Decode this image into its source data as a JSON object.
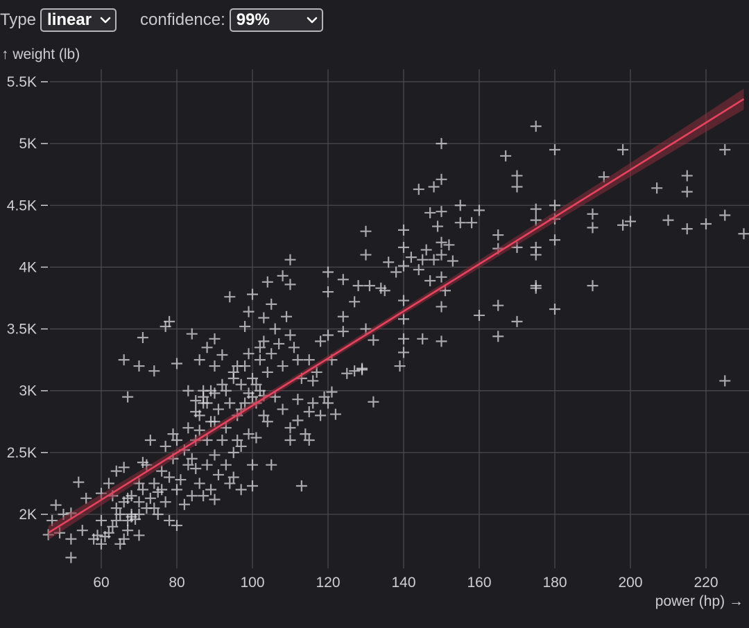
{
  "controls": {
    "type_label": "Type",
    "type_value": "linear",
    "confidence_label": "confidence:",
    "confidence_value": "99%"
  },
  "colors": {
    "background": "#1e1d21",
    "grid": "#4a494e",
    "points": "#d9d9dd",
    "regression": "#e8435e",
    "band": "#8b2b3d"
  },
  "chart_data": {
    "type": "scatter",
    "title": "",
    "xlabel": "power (hp) →",
    "ylabel": "↑ weight (lb)",
    "xlim": [
      45,
      230
    ],
    "ylim": [
      1600,
      5600
    ],
    "x_ticks": [
      60,
      80,
      100,
      120,
      140,
      160,
      180,
      200,
      220
    ],
    "y_ticks": [
      2000,
      2500,
      3000,
      3500,
      4000,
      4500,
      5000,
      5500
    ],
    "y_tick_labels": [
      "2K",
      "2.5K",
      "3K",
      "3.5K",
      "4K",
      "4.5K",
      "5K",
      "5.5K"
    ],
    "grid": true,
    "marker": "plus",
    "regression": {
      "type": "linear",
      "confidence": 0.99,
      "x0": 46,
      "y0": 1850,
      "x1": 230,
      "y1": 5360,
      "band_halfwidth_ends": 85,
      "band_halfwidth_mid": 25
    },
    "points": [
      [
        46,
        1835
      ],
      [
        47,
        1950
      ],
      [
        48,
        2075
      ],
      [
        49,
        1850
      ],
      [
        50,
        2000
      ],
      [
        52,
        2010
      ],
      [
        52,
        1800
      ],
      [
        52,
        1650
      ],
      [
        54,
        2260
      ],
      [
        55,
        1870
      ],
      [
        56,
        2130
      ],
      [
        58,
        1800
      ],
      [
        59,
        1830
      ],
      [
        60,
        1760
      ],
      [
        60,
        1950
      ],
      [
        60,
        2170
      ],
      [
        61,
        1820
      ],
      [
        62,
        1850
      ],
      [
        63,
        1900
      ],
      [
        64,
        2050
      ],
      [
        64,
        1950
      ],
      [
        65,
        1760
      ],
      [
        65,
        2000
      ],
      [
        66,
        1800
      ],
      [
        66,
        2100
      ],
      [
        67,
        1950
      ],
      [
        67,
        1870
      ],
      [
        67,
        2130
      ],
      [
        68,
        1980
      ],
      [
        68,
        2150
      ],
      [
        69,
        1960
      ],
      [
        70,
        1830
      ],
      [
        70,
        2000
      ],
      [
        70,
        2100
      ],
      [
        71,
        2200
      ],
      [
        72,
        2050
      ],
      [
        72,
        2400
      ],
      [
        73,
        2130
      ],
      [
        74,
        2250
      ],
      [
        75,
        2000
      ],
      [
        75,
        2180
      ],
      [
        76,
        2200
      ],
      [
        77,
        2100
      ],
      [
        78,
        1950
      ],
      [
        78,
        2300
      ],
      [
        79,
        2450
      ],
      [
        80,
        1910
      ],
      [
        80,
        2200
      ],
      [
        81,
        2280
      ],
      [
        82,
        2080
      ],
      [
        83,
        2400
      ],
      [
        84,
        2150
      ],
      [
        85,
        2370
      ],
      [
        85,
        2600
      ],
      [
        86,
        2250
      ],
      [
        86,
        2800
      ],
      [
        87,
        2150
      ],
      [
        87,
        2900
      ],
      [
        88,
        2400
      ],
      [
        88,
        2600
      ],
      [
        89,
        2200
      ],
      [
        89,
        3000
      ],
      [
        90,
        2120
      ],
      [
        90,
        2480
      ],
      [
        90,
        2750
      ],
      [
        91,
        2320
      ],
      [
        92,
        2600
      ],
      [
        93,
        2400
      ],
      [
        94,
        2250
      ],
      [
        95,
        2300
      ],
      [
        95,
        2500
      ],
      [
        96,
        2800
      ],
      [
        97,
        2200
      ],
      [
        97,
        2550
      ],
      [
        98,
        2900
      ],
      [
        99,
        2650
      ],
      [
        100,
        2230
      ],
      [
        100,
        2400
      ],
      [
        100,
        2950
      ],
      [
        101,
        2620
      ],
      [
        102,
        3000
      ],
      [
        103,
        2800
      ],
      [
        104,
        2750
      ],
      [
        105,
        2400
      ],
      [
        106,
        2950
      ],
      [
        108,
        2850
      ],
      [
        110,
        2600
      ],
      [
        110,
        2700
      ],
      [
        112,
        2930
      ],
      [
        113,
        2230
      ],
      [
        114,
        2650
      ],
      [
        115,
        2600
      ],
      [
        116,
        2900
      ],
      [
        118,
        2800
      ],
      [
        120,
        2900
      ],
      [
        122,
        2810
      ],
      [
        125,
        3140
      ],
      [
        127,
        3160
      ],
      [
        129,
        3180
      ],
      [
        132,
        2910
      ],
      [
        62,
        2250
      ],
      [
        63,
        2150
      ],
      [
        64,
        2350
      ],
      [
        66,
        2380
      ],
      [
        68,
        2000
      ],
      [
        70,
        2250
      ],
      [
        71,
        2420
      ],
      [
        73,
        2600
      ],
      [
        74,
        2050
      ],
      [
        76,
        2350
      ],
      [
        77,
        2550
      ],
      [
        79,
        2650
      ],
      [
        80,
        2600
      ],
      [
        82,
        2520
      ],
      [
        83,
        2700
      ],
      [
        84,
        2450
      ],
      [
        85,
        2920
      ],
      [
        86,
        2680
      ],
      [
        87,
        3000
      ],
      [
        88,
        2900
      ],
      [
        89,
        2750
      ],
      [
        90,
        2980
      ],
      [
        91,
        2850
      ],
      [
        92,
        3050
      ],
      [
        93,
        2700
      ],
      [
        94,
        2900
      ],
      [
        95,
        3100
      ],
      [
        96,
        2600
      ],
      [
        97,
        3050
      ],
      [
        98,
        3200
      ],
      [
        99,
        3300
      ],
      [
        100,
        3100
      ],
      [
        101,
        3050
      ],
      [
        102,
        3250
      ],
      [
        103,
        3400
      ],
      [
        104,
        3150
      ],
      [
        105,
        3300
      ],
      [
        106,
        3500
      ],
      [
        107,
        3380
      ],
      [
        108,
        3200
      ],
      [
        109,
        3600
      ],
      [
        110,
        3450
      ],
      [
        111,
        3350
      ],
      [
        112,
        3250
      ],
      [
        113,
        3100
      ],
      [
        115,
        3250
      ],
      [
        116,
        3080
      ],
      [
        118,
        3400
      ],
      [
        120,
        3450
      ],
      [
        121,
        3250
      ],
      [
        66,
        3250
      ],
      [
        67,
        2950
      ],
      [
        70,
        3200
      ],
      [
        71,
        3430
      ],
      [
        74,
        3160
      ],
      [
        77,
        3520
      ],
      [
        78,
        3560
      ],
      [
        80,
        3220
      ],
      [
        84,
        3460
      ],
      [
        86,
        3250
      ],
      [
        88,
        3350
      ],
      [
        90,
        3420
      ],
      [
        92,
        3290
      ],
      [
        94,
        3760
      ],
      [
        96,
        3200
      ],
      [
        98,
        3520
      ],
      [
        99,
        3640
      ],
      [
        100,
        3780
      ],
      [
        102,
        3350
      ],
      [
        103,
        3590
      ],
      [
        104,
        3880
      ],
      [
        105,
        3700
      ],
      [
        108,
        3930
      ],
      [
        110,
        4060
      ],
      [
        110,
        3860
      ],
      [
        120,
        3800
      ],
      [
        120,
        3960
      ],
      [
        124,
        3900
      ],
      [
        124,
        3600
      ],
      [
        127,
        3720
      ],
      [
        128,
        3850
      ],
      [
        130,
        3500
      ],
      [
        130,
        4100
      ],
      [
        130,
        4290
      ],
      [
        132,
        3410
      ],
      [
        134,
        3830
      ],
      [
        136,
        4040
      ],
      [
        138,
        3960
      ],
      [
        139,
        3200
      ],
      [
        140,
        3310
      ],
      [
        140,
        3420
      ],
      [
        140,
        3580
      ],
      [
        140,
        3730
      ],
      [
        140,
        4010
      ],
      [
        140,
        4160
      ],
      [
        140,
        4300
      ],
      [
        142,
        4080
      ],
      [
        144,
        3980
      ],
      [
        145,
        3420
      ],
      [
        145,
        4060
      ],
      [
        146,
        4140
      ],
      [
        147,
        3890
      ],
      [
        148,
        4060
      ],
      [
        148,
        4650
      ],
      [
        149,
        4330
      ],
      [
        150,
        3400
      ],
      [
        150,
        3680
      ],
      [
        150,
        3920
      ],
      [
        150,
        4100
      ],
      [
        150,
        4200
      ],
      [
        150,
        4450
      ],
      [
        150,
        4710
      ],
      [
        150,
        5000
      ],
      [
        151,
        3810
      ],
      [
        152,
        4180
      ],
      [
        153,
        4050
      ],
      [
        155,
        4360
      ],
      [
        155,
        4500
      ],
      [
        158,
        4360
      ],
      [
        160,
        4460
      ],
      [
        160,
        3610
      ],
      [
        165,
        3690
      ],
      [
        165,
        3440
      ],
      [
        165,
        4260
      ],
      [
        165,
        4150
      ],
      [
        167,
        4900
      ],
      [
        170,
        4650
      ],
      [
        170,
        4740
      ],
      [
        170,
        3560
      ],
      [
        170,
        4160
      ],
      [
        175,
        4470
      ],
      [
        175,
        4380
      ],
      [
        175,
        4160
      ],
      [
        175,
        4100
      ],
      [
        175,
        3830
      ],
      [
        175,
        3850
      ],
      [
        175,
        5140
      ],
      [
        180,
        4500
      ],
      [
        180,
        4220
      ],
      [
        180,
        4390
      ],
      [
        180,
        3660
      ],
      [
        180,
        4950
      ],
      [
        190,
        4430
      ],
      [
        190,
        4320
      ],
      [
        190,
        3850
      ],
      [
        193,
        4730
      ],
      [
        198,
        4950
      ],
      [
        198,
        4340
      ],
      [
        200,
        4370
      ],
      [
        207,
        4640
      ],
      [
        210,
        4380
      ],
      [
        215,
        4740
      ],
      [
        215,
        4610
      ],
      [
        215,
        4310
      ],
      [
        220,
        4350
      ],
      [
        225,
        4420
      ],
      [
        225,
        4950
      ],
      [
        225,
        3080
      ],
      [
        230,
        4270
      ],
      [
        144,
        4630
      ],
      [
        147,
        4440
      ],
      [
        124,
        3480
      ],
      [
        129,
        3170
      ],
      [
        131,
        3850
      ],
      [
        135,
        3810
      ],
      [
        112,
        2760
      ],
      [
        115,
        2830
      ],
      [
        117,
        3150
      ],
      [
        119,
        2950
      ],
      [
        121,
        2990
      ],
      [
        83,
        3000
      ],
      [
        85,
        2830
      ],
      [
        87,
        2950
      ],
      [
        90,
        3200
      ],
      [
        93,
        3000
      ],
      [
        95,
        3150
      ],
      [
        97,
        2850
      ],
      [
        99,
        2980
      ],
      [
        101,
        2900
      ],
      [
        103,
        2960
      ]
    ]
  }
}
